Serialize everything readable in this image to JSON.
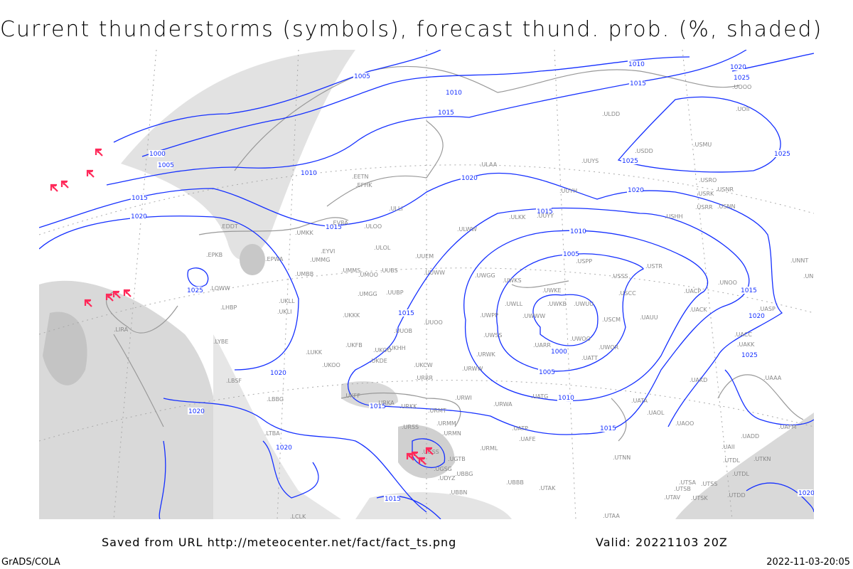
{
  "title": "Current thunderstorms (symbols), forecast thund. prob. (%, shaded)",
  "footer": {
    "saved_from": "Saved from URL http://meteocenter.net/fact/fact_ts.png",
    "valid": "Valid: 20221103 20Z",
    "software": "GrADS/COLA",
    "timestamp": "2022-11-03-20:05"
  },
  "colors": {
    "isobar": "#1530ff",
    "thunderstorm_symbol": "#ff2a5a",
    "shading": "#d8d8d8",
    "coastline": "#999999",
    "station_label": "#888888"
  },
  "isobar_labels": [
    "1005",
    "1010",
    "1015",
    "1010",
    "1015",
    "1020",
    "1025",
    "1000",
    "1005",
    "1010",
    "1015",
    "1020",
    "1020",
    "1025",
    "1025",
    "1020",
    "1015",
    "1010",
    "1005",
    "1000",
    "1005",
    "1010",
    "1015",
    "1020",
    "1025",
    "1015",
    "1015",
    "1025",
    "1020",
    "1020",
    "1015",
    "1020",
    "1015",
    "1015",
    "1020"
  ],
  "stations": [
    "UOOO",
    "UOII",
    "ULDD",
    "USDD",
    "USMU",
    "UUYS",
    "ULAA",
    "USRO",
    "USRK",
    "USNR",
    "USRR",
    "USNN",
    "UUYH",
    "UUYY",
    "ULKK",
    "USHH",
    "ULWW",
    "ULOO",
    "EVRA",
    "ULLI",
    "EETN",
    "EFHK",
    "EDDT",
    "UMKK",
    "EYVI",
    "ULOL",
    "UUEM",
    "UMMG",
    "EPWA",
    "EPKB",
    "UMBB",
    "UMMS",
    "UMOO",
    "UUBS",
    "UUWW",
    "UWGG",
    "UWKS",
    "USPP",
    "USSS",
    "USTR",
    "UWKE",
    "USCC",
    "UACP",
    "UNOO",
    "UNNT",
    "UNBB",
    "LOWW",
    "UKLL",
    "UMGG",
    "UUBP",
    "UWLL",
    "UWKB",
    "UWUU",
    "UACK",
    "UASP",
    "LHBP",
    "UKLI",
    "UKKK",
    "UWPP",
    "UWWW",
    "USCM",
    "UAUU",
    "LIRA",
    "UUOO",
    "UUOB",
    "UWSS",
    "UWOO",
    "UACC",
    "LYBE",
    "UKHH",
    "UKFB",
    "UKOO",
    "UARR",
    "UWOR",
    "UATT",
    "UAKK",
    "LUKK",
    "URWK",
    "UKDE",
    "UKOO",
    "UKCW",
    "URWW",
    "UAAA",
    "LBSF",
    "URRR",
    "UKFF",
    "UAKD",
    "URWI",
    "UATG",
    "UATA",
    "LBBG",
    "URKA",
    "URKK",
    "URMT",
    "URWA",
    "UAOL",
    "UAOO",
    "UAFM",
    "URSS",
    "URMM",
    "UATP",
    "UAFE",
    "URMN",
    "LTBA",
    "UADD",
    "UGSS",
    "URML",
    "UAII",
    "UGTB",
    "UTNN",
    "UTKN",
    "UTDL",
    "UGSG",
    "UBBG",
    "UTDL",
    "UDYZ",
    "UTSA",
    "UBBB",
    "UTSS",
    "UTSB",
    "UTAK",
    "UTDD",
    "UBBN",
    "UTAV",
    "UTSK",
    "UTAA",
    "LCLK"
  ],
  "thunderstorm_symbol_count": 12
}
